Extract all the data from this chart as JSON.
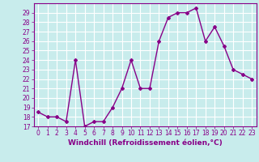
{
  "x": [
    0,
    1,
    2,
    3,
    4,
    5,
    6,
    7,
    8,
    9,
    10,
    11,
    12,
    13,
    14,
    15,
    16,
    17,
    18,
    19,
    20,
    21,
    22,
    23
  ],
  "y": [
    18.5,
    18.0,
    18.0,
    17.5,
    24.0,
    17.0,
    17.5,
    17.5,
    19.0,
    21.0,
    24.0,
    21.0,
    21.0,
    26.0,
    28.5,
    29.0,
    29.0,
    29.5,
    26.0,
    27.5,
    25.5,
    23.0,
    22.5,
    22.0
  ],
  "line_color": "#880088",
  "marker": "D",
  "marker_size": 2.0,
  "line_width": 1.0,
  "bg_color": "#c8ecec",
  "grid_color": "#ffffff",
  "xlabel": "Windchill (Refroidissement éolien,°C)",
  "xlabel_fontsize": 6.5,
  "xlabel_color": "#880088",
  "tick_color": "#880088",
  "xlim": [
    -0.5,
    23.5
  ],
  "ylim": [
    17,
    30
  ],
  "yticks": [
    17,
    18,
    19,
    20,
    21,
    22,
    23,
    24,
    25,
    26,
    27,
    28,
    29
  ],
  "xticks": [
    0,
    1,
    2,
    3,
    4,
    5,
    6,
    7,
    8,
    9,
    10,
    11,
    12,
    13,
    14,
    15,
    16,
    17,
    18,
    19,
    20,
    21,
    22,
    23
  ],
  "tick_fontsize": 5.5
}
